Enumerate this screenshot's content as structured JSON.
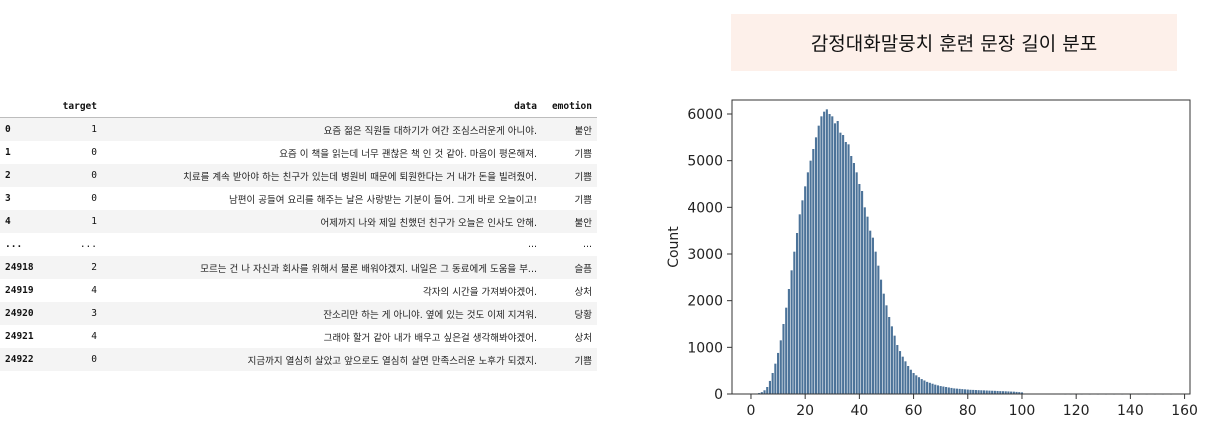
{
  "dataframe": {
    "columns": [
      "",
      "target",
      "data",
      "emotion"
    ],
    "rows": [
      {
        "index": "0",
        "target": "1",
        "data": "요즘 젊은 직원들 대하기가 여간 조심스러운게 아니야.",
        "emotion": "불안"
      },
      {
        "index": "1",
        "target": "0",
        "data": "요즘 이 책을 읽는데 너무 괜찮은 책 인 것 같아. 마음이 평온해져.",
        "emotion": "기쁨"
      },
      {
        "index": "2",
        "target": "0",
        "data": "치료를 계속 받아야 하는 친구가 있는데 병원비 때문에 퇴원한다는 거 내가 돈을 빌려줬어.",
        "emotion": "기쁨"
      },
      {
        "index": "3",
        "target": "0",
        "data": "남편이 공들여 요리를 해주는 날은 사랑받는 기분이 들어. 그게 바로 오늘이고!",
        "emotion": "기쁨"
      },
      {
        "index": "4",
        "target": "1",
        "data": "어제까지 나와 제일 친했던 친구가 오늘은 인사도 안해.",
        "emotion": "불안"
      },
      {
        "index": "...",
        "target": "...",
        "data": "...",
        "emotion": "..."
      },
      {
        "index": "24918",
        "target": "2",
        "data": "모르는 건 나 자신과 회사를 위해서 물론 배워야겠지. 내일은 그 동료에게 도움을 부...",
        "emotion": "슬픔"
      },
      {
        "index": "24919",
        "target": "4",
        "data": "각자의 시간을 가져봐야겠어.",
        "emotion": "상처"
      },
      {
        "index": "24920",
        "target": "3",
        "data": "잔소리만 하는 게 아니야. 옆에 있는 것도 이제 지겨워.",
        "emotion": "당황"
      },
      {
        "index": "24921",
        "target": "4",
        "data": "그래야 할거 같아 내가 배우고 싶은걸 생각해봐야겠어.",
        "emotion": "상처"
      },
      {
        "index": "24922",
        "target": "0",
        "data": "지금까지 열심히 살았고 앞으로도 열심히 살면 만족스러운 노후가 되겠지.",
        "emotion": "기쁨"
      }
    ]
  },
  "chart_title": "감정대화말뭉치 훈련 문장 길이 분포",
  "chart_data": {
    "type": "bar",
    "title": "감정대화말뭉치 훈련 문장 길이 분포",
    "xlabel": "",
    "ylabel": "Count",
    "xlim": [
      -7,
      162
    ],
    "ylim": [
      0,
      6300
    ],
    "xticks": [
      0,
      20,
      40,
      60,
      80,
      100,
      120,
      140,
      160
    ],
    "yticks": [
      0,
      1000,
      2000,
      3000,
      4000,
      5000,
      6000
    ],
    "grid": false,
    "bar_color": "#4c7399",
    "bins": [
      [
        1,
        5
      ],
      [
        2,
        10
      ],
      [
        3,
        20
      ],
      [
        4,
        40
      ],
      [
        5,
        80
      ],
      [
        6,
        150
      ],
      [
        7,
        280
      ],
      [
        8,
        450
      ],
      [
        9,
        650
      ],
      [
        10,
        880
      ],
      [
        11,
        1150
      ],
      [
        12,
        1500
      ],
      [
        13,
        1850
      ],
      [
        14,
        2250
      ],
      [
        15,
        2650
      ],
      [
        16,
        3050
      ],
      [
        17,
        3450
      ],
      [
        18,
        3850
      ],
      [
        19,
        4150
      ],
      [
        20,
        4450
      ],
      [
        21,
        4750
      ],
      [
        22,
        5000
      ],
      [
        23,
        5250
      ],
      [
        24,
        5500
      ],
      [
        25,
        5750
      ],
      [
        26,
        5950
      ],
      [
        27,
        6050
      ],
      [
        28,
        6100
      ],
      [
        29,
        6000
      ],
      [
        30,
        5950
      ],
      [
        31,
        5800
      ],
      [
        32,
        5850
      ],
      [
        33,
        5600
      ],
      [
        34,
        5550
      ],
      [
        35,
        5400
      ],
      [
        36,
        5350
      ],
      [
        37,
        5100
      ],
      [
        38,
        4950
      ],
      [
        39,
        4750
      ],
      [
        40,
        4500
      ],
      [
        41,
        4350
      ],
      [
        42,
        4000
      ],
      [
        43,
        3800
      ],
      [
        44,
        3500
      ],
      [
        45,
        3350
      ],
      [
        46,
        3050
      ],
      [
        47,
        2750
      ],
      [
        48,
        2450
      ],
      [
        49,
        2150
      ],
      [
        50,
        1900
      ],
      [
        51,
        1650
      ],
      [
        52,
        1450
      ],
      [
        53,
        1250
      ],
      [
        54,
        1050
      ],
      [
        55,
        920
      ],
      [
        56,
        800
      ],
      [
        57,
        700
      ],
      [
        58,
        600
      ],
      [
        59,
        520
      ],
      [
        60,
        450
      ],
      [
        61,
        400
      ],
      [
        62,
        360
      ],
      [
        63,
        320
      ],
      [
        64,
        290
      ],
      [
        65,
        260
      ],
      [
        66,
        240
      ],
      [
        67,
        220
      ],
      [
        68,
        200
      ],
      [
        69,
        185
      ],
      [
        70,
        170
      ],
      [
        71,
        160
      ],
      [
        72,
        150
      ],
      [
        73,
        140
      ],
      [
        74,
        130
      ],
      [
        75,
        120
      ],
      [
        76,
        115
      ],
      [
        77,
        110
      ],
      [
        78,
        105
      ],
      [
        79,
        100
      ],
      [
        80,
        95
      ],
      [
        81,
        90
      ],
      [
        82,
        88
      ],
      [
        83,
        85
      ],
      [
        84,
        82
      ],
      [
        85,
        80
      ],
      [
        86,
        78
      ],
      [
        87,
        75
      ],
      [
        88,
        72
      ],
      [
        89,
        70
      ],
      [
        90,
        68
      ],
      [
        91,
        65
      ],
      [
        92,
        62
      ],
      [
        93,
        60
      ],
      [
        94,
        58
      ],
      [
        95,
        55
      ],
      [
        96,
        52
      ],
      [
        97,
        50
      ],
      [
        98,
        45
      ],
      [
        99,
        40
      ],
      [
        100,
        35
      ],
      [
        101,
        8
      ],
      [
        102,
        6
      ],
      [
        103,
        5
      ],
      [
        104,
        4
      ],
      [
        105,
        4
      ],
      [
        106,
        3
      ],
      [
        107,
        3
      ],
      [
        108,
        3
      ],
      [
        109,
        2
      ],
      [
        110,
        2
      ],
      [
        112,
        2
      ],
      [
        114,
        2
      ],
      [
        116,
        1
      ],
      [
        118,
        1
      ],
      [
        120,
        1
      ],
      [
        122,
        1
      ],
      [
        125,
        1
      ],
      [
        128,
        1
      ],
      [
        131,
        1
      ],
      [
        134,
        1
      ],
      [
        137,
        1
      ],
      [
        140,
        1
      ],
      [
        143,
        1
      ],
      [
        146,
        1
      ],
      [
        149,
        1
      ],
      [
        152,
        1
      ],
      [
        155,
        1
      ]
    ]
  }
}
